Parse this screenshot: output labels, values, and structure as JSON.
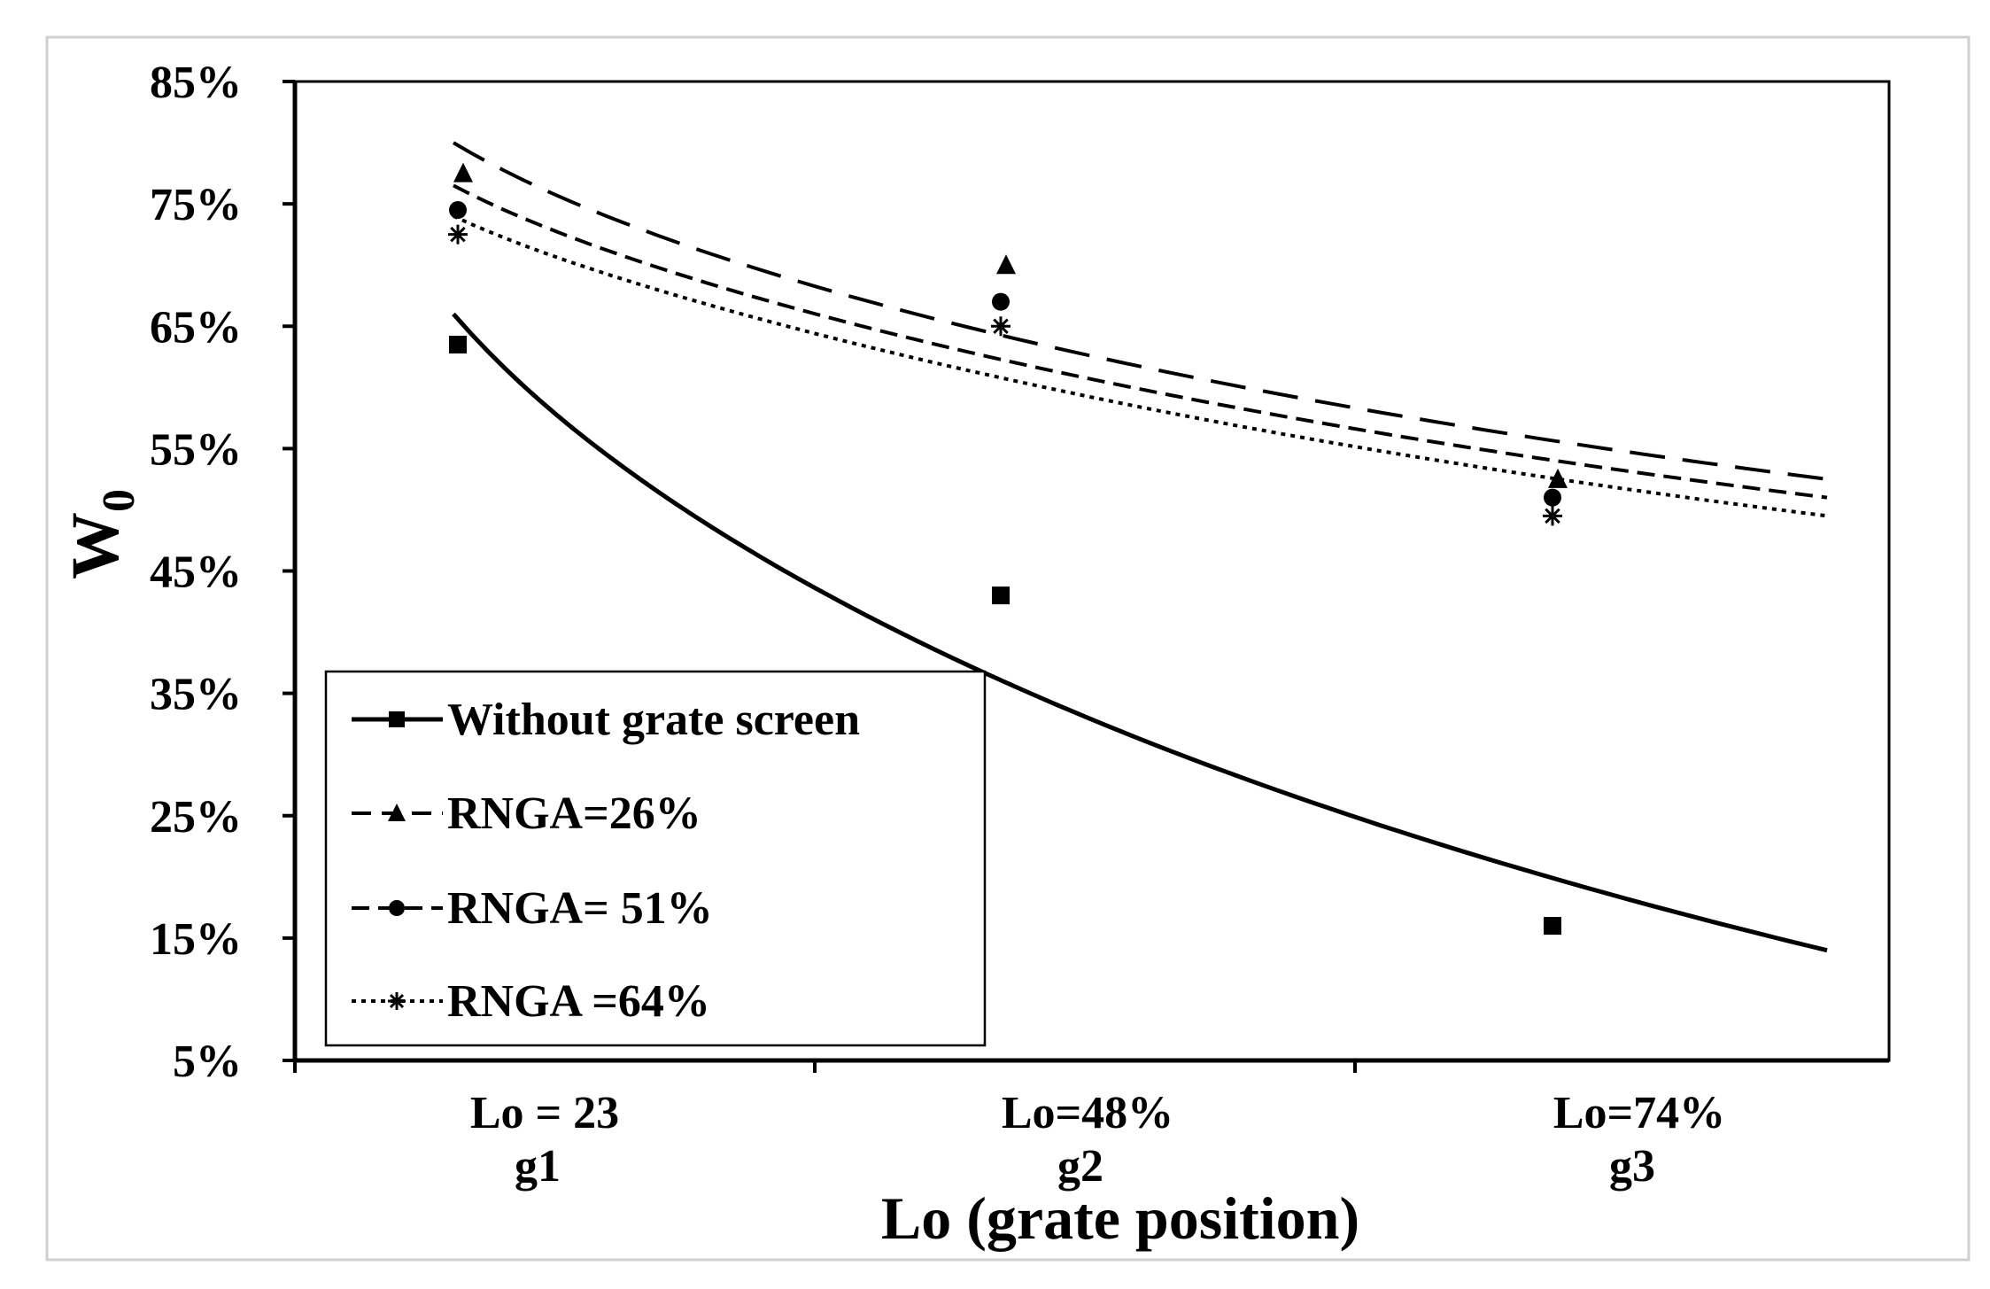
{
  "chart_data": {
    "type": "scatter",
    "title": "",
    "xlabel": "Lo (grate position)",
    "ylabel": "W",
    "ylabel_subscript": "0",
    "ylim": [
      5,
      85
    ],
    "yticks": [
      5,
      15,
      25,
      35,
      45,
      55,
      65,
      75,
      85
    ],
    "ytick_labels": [
      "5%",
      "15%",
      "25%",
      "35%",
      "45%",
      "55%",
      "65%",
      "75%",
      "85%"
    ],
    "categories": [
      {
        "line1": "Lo = 23",
        "line2": "g1"
      },
      {
        "line1": "Lo=48%",
        "line2": "g2"
      },
      {
        "line1": "Lo=74%",
        "line2": "g3"
      }
    ],
    "grid": false,
    "legend_position": "bottom-left",
    "series": [
      {
        "name": "Without grate screen",
        "marker": "square",
        "dash": "solid",
        "values": [
          63.5,
          43,
          16
        ],
        "trend": {
          "start": 66,
          "mid": 36.5,
          "end": 14
        }
      },
      {
        "name": "RNGA=26%",
        "marker": "triangle",
        "dash": "long-dash",
        "values": [
          77.5,
          70,
          52.5
        ],
        "trend": {
          "start": 80,
          "mid": 64.5,
          "end": 52.5
        }
      },
      {
        "name": "RNGA= 51%",
        "marker": "circle",
        "dash": "short-dash",
        "values": [
          74.5,
          67,
          51
        ],
        "trend": {
          "start": 76.5,
          "mid": 62.5,
          "end": 51
        }
      },
      {
        "name": "RNGA =64%",
        "marker": "star",
        "dash": "dotted",
        "values": [
          72.5,
          65,
          49.5
        ],
        "trend": {
          "start": 74,
          "mid": 61,
          "end": 49.5
        }
      }
    ]
  }
}
